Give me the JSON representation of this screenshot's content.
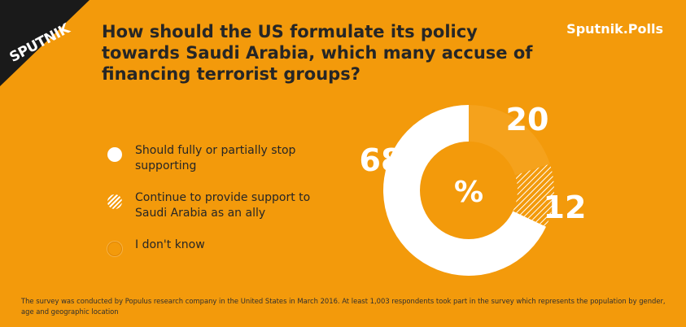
{
  "brand": {
    "logo_text": "SPUTNIK",
    "polls_label": "Sputnik.Polls"
  },
  "title": "How should the US formulate its policy towards Saudi Arabia, which many accuse of financing terrorist groups?",
  "colors": {
    "background": "#F39A0B",
    "stop_support": "#FFFFFF",
    "ally": "#F39A0B",
    "dont_know": "#F39A0B"
  },
  "chart_data": {
    "type": "pie",
    "variant": "donut",
    "center_label": "%",
    "series": [
      {
        "name": "Should fully or partially stop supporting",
        "value": 68,
        "label": "68",
        "color": "#FFFFFF",
        "pattern": "solid"
      },
      {
        "name": "Continue to provide support to Saudi Arabia as an ally",
        "value": 12,
        "label": "12",
        "color": "#F39A0B",
        "pattern": "hatched"
      },
      {
        "name": "I don't know",
        "value": 20,
        "label": "20",
        "color": "#F39A0B",
        "pattern": "solid"
      }
    ]
  },
  "legend": {
    "items": [
      {
        "line1": "Should fully or partially stop",
        "line2": "supporting"
      },
      {
        "line1": "Continue to provide support to",
        "line2": "Saudi Arabia as an ally"
      },
      {
        "line1": "I don't know",
        "line2": ""
      }
    ]
  },
  "footnote": {
    "line1": "The survey was conducted by Populus research company in the United States in March 2016. At least 1,003 respondents took part in the survey which represents the population by gender,",
    "line2": "age and geographic location"
  }
}
